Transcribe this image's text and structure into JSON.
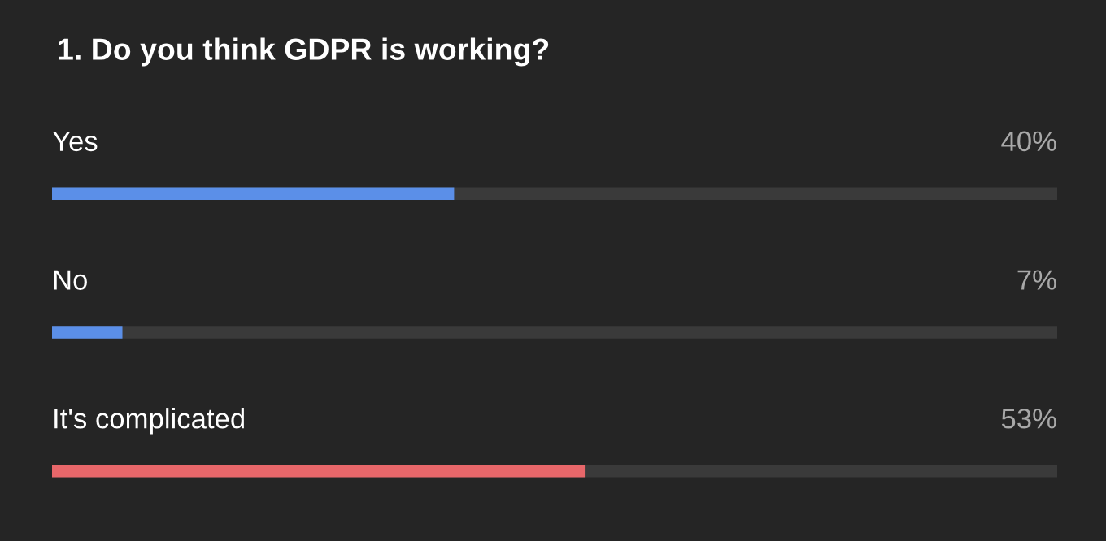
{
  "chart_data": {
    "type": "bar",
    "orientation": "horizontal",
    "title": "1. Do you think GDPR is working?",
    "categories": [
      "Yes",
      "No",
      "It's complicated"
    ],
    "values": [
      40,
      7,
      53
    ],
    "colors": [
      "#5b8fe8",
      "#5b8fe8",
      "#e8676a"
    ],
    "value_labels": [
      "40%",
      "7%",
      "53%"
    ],
    "xlim": [
      0,
      100
    ]
  }
}
